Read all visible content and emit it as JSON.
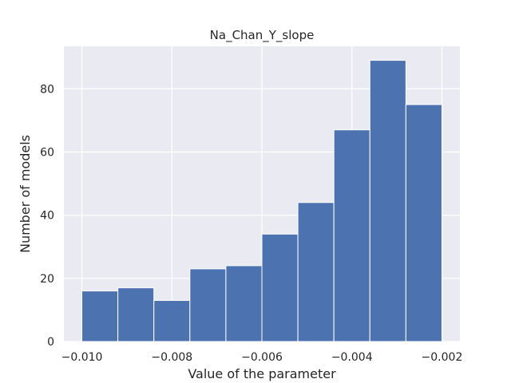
{
  "chart_data": {
    "type": "bar",
    "subtype": "histogram",
    "title": "Na_Chan_Y_slope",
    "xlabel": "Value of the parameter",
    "ylabel": "Number of models",
    "bins": [
      {
        "x0": -0.01,
        "x1": -0.0092,
        "count": 16
      },
      {
        "x0": -0.0092,
        "x1": -0.0084,
        "count": 17
      },
      {
        "x0": -0.0084,
        "x1": -0.0076,
        "count": 13
      },
      {
        "x0": -0.0076,
        "x1": -0.0068,
        "count": 23
      },
      {
        "x0": -0.0068,
        "x1": -0.006,
        "count": 24
      },
      {
        "x0": -0.006,
        "x1": -0.0052,
        "count": 34
      },
      {
        "x0": -0.0052,
        "x1": -0.0044,
        "count": 44
      },
      {
        "x0": -0.0044,
        "x1": -0.0036,
        "count": 67
      },
      {
        "x0": -0.0036,
        "x1": -0.0028,
        "count": 89
      },
      {
        "x0": -0.0028,
        "x1": -0.002,
        "count": 75
      }
    ],
    "xlim": [
      -0.0104,
      -0.0016
    ],
    "ylim": [
      0,
      93.45
    ],
    "xticks": [
      -0.01,
      -0.008,
      -0.006,
      -0.004,
      -0.002
    ],
    "xtick_labels": [
      "−0.010",
      "−0.008",
      "−0.006",
      "−0.004",
      "−0.002"
    ],
    "yticks": [
      0,
      20,
      40,
      60,
      80
    ],
    "ytick_labels": [
      "0",
      "20",
      "40",
      "60",
      "80"
    ],
    "grid": true,
    "colors": {
      "bar": "#4c72b0",
      "bar_edge": "#ffffff",
      "plot_background": "#eaeaf2",
      "grid": "#ffffff",
      "text": "#262626"
    }
  }
}
